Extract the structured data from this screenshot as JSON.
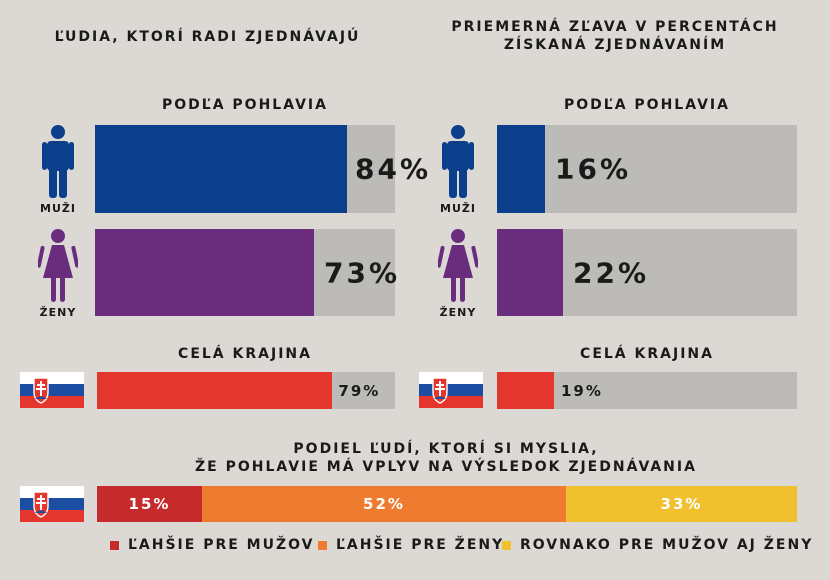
{
  "colors": {
    "men": "#0b3f8c",
    "women": "#6a2d7e",
    "country": "#e4362d",
    "track": "#bdbbb8",
    "men_easier": "#c62b2b",
    "women_easier": "#ee7b30",
    "equal": "#f0c02f",
    "bg": "#dcd9d5"
  },
  "left": {
    "title": "ĽUDIA, KTORÍ RADI ZJEDNÁVAJÚ",
    "by_gender": "PODĽA POHLAVIA",
    "men_label": "MUŽI",
    "women_label": "ŽENY",
    "men_pct": "84%",
    "women_pct": "73%",
    "country_title": "CELÁ KRAJINA",
    "country_pct": "79%"
  },
  "right": {
    "title_line1": "PRIEMERNÁ ZĽAVA V PERCENTÁCH",
    "title_line2": "ZÍSKANÁ ZJEDNÁVANÍM",
    "by_gender": "PODĽA POHLAVIA",
    "men_label": "MUŽI",
    "women_label": "ŽENY",
    "men_pct": "16%",
    "women_pct": "22%",
    "country_title": "CELÁ KRAJINA",
    "country_pct": "19%"
  },
  "bottom": {
    "title_line1": "PODIEL ĽUDÍ, KTORÍ SI MYSLIA,",
    "title_line2": "ŽE POHLAVIE MÁ VPLYV NA VÝSLEDOK ZJEDNÁVANIA",
    "seg1_pct": "15%",
    "seg2_pct": "52%",
    "seg3_pct": "33%",
    "legend1": "ĽAHŠIE PRE MUŽOV",
    "legend2": "ĽAHŠIE PRE ŽENY",
    "legend3": "ROVNAKO PRE MUŽOV AJ ŽENY"
  },
  "chart_data": [
    {
      "type": "bar",
      "categories": [
        "MUŽI",
        "ŽENY"
      ],
      "values": [
        84,
        73
      ],
      "title": "ĽUDIA, KTORÍ RADI ZJEDNÁVAJÚ",
      "ylim": [
        0,
        100
      ]
    },
    {
      "type": "bar",
      "categories": [
        "CELÁ KRAJINA"
      ],
      "values": [
        79
      ],
      "ylim": [
        0,
        100
      ]
    },
    {
      "type": "bar",
      "categories": [
        "MUŽI",
        "ŽENY"
      ],
      "values": [
        16,
        22
      ],
      "title": "PRIEMERNÁ ZĽAVA V PERCENTÁCH ZÍSKANÁ ZJEDNÁVANÍM",
      "ylim": [
        0,
        100
      ]
    },
    {
      "type": "bar",
      "categories": [
        "CELÁ KRAJINA"
      ],
      "values": [
        19
      ],
      "ylim": [
        0,
        100
      ]
    },
    {
      "type": "bar",
      "categories": [
        "ĽAHŠIE PRE MUŽOV",
        "ĽAHŠIE PRE ŽENY",
        "ROVNAKO PRE MUŽOV AJ ŽENY"
      ],
      "values": [
        15,
        52,
        33
      ],
      "title": "PODIEL ĽUDÍ, KTORÍ SI MYSLIA, ŽE POHLAVIE MÁ VPLYV NA VÝSLEDOK ZJEDNÁVANIA",
      "ylim": [
        0,
        100
      ]
    }
  ]
}
